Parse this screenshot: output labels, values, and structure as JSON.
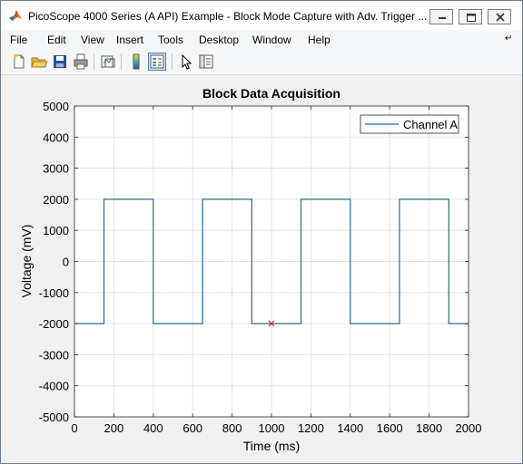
{
  "window": {
    "title": "PicoScope 4000 Series (A API) Example - Block Mode Capture with Adv. Trigger ..."
  },
  "menu": [
    "File",
    "Edit",
    "View",
    "Insert",
    "Tools",
    "Desktop",
    "Window",
    "Help"
  ],
  "toolbar": {
    "buttons": [
      "new-figure-icon",
      "open-file-icon",
      "save-icon",
      "print-icon",
      "link-plot-icon",
      "colorbar-icon",
      "legend-icon",
      "pointer-icon",
      "property-editor-icon"
    ]
  },
  "chart_data": {
    "type": "line",
    "title": "Block Data Acquisition",
    "xlabel": "Time (ms)",
    "ylabel": "Voltage (mV)",
    "xlim": [
      0,
      2000
    ],
    "ylim": [
      -5000,
      5000
    ],
    "xticks": [
      "0",
      "200",
      "400",
      "600",
      "800",
      "1000",
      "1200",
      "1400",
      "1600",
      "1800",
      "2000"
    ],
    "yticks": [
      "5000",
      "4000",
      "3000",
      "2000",
      "1000",
      "0",
      "-1000",
      "-2000",
      "-3000",
      "-4000",
      "-5000"
    ],
    "grid": true,
    "legend": {
      "placement": "top-right",
      "entries": [
        "Channel A"
      ]
    },
    "series": [
      {
        "name": "Channel A",
        "color": "#1f6f8b",
        "x": [
          0,
          150,
          150,
          400,
          400,
          650,
          650,
          900,
          900,
          1150,
          1150,
          1400,
          1400,
          1650,
          1650,
          1900,
          1900,
          2000
        ],
        "y": [
          -2000,
          -2000,
          2000,
          2000,
          -2000,
          -2000,
          2000,
          2000,
          -2000,
          -2000,
          2000,
          2000,
          -2000,
          -2000,
          2000,
          2000,
          -2000,
          -2000
        ]
      }
    ],
    "trigger_marker": {
      "x": 1000,
      "y": -2000,
      "color": "#d62728"
    }
  }
}
